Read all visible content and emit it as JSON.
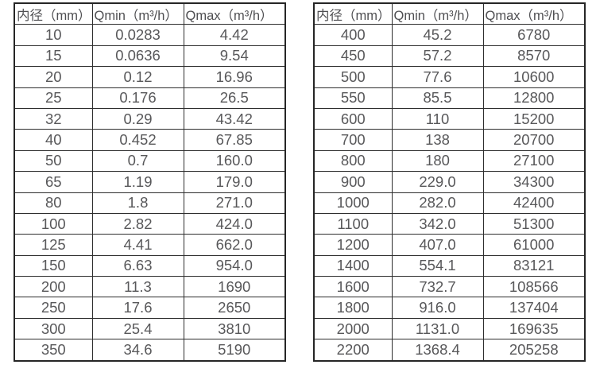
{
  "colors": {
    "border": "#262626",
    "inner_border": "#2e2e2e",
    "text": "#58585a",
    "background": "#ffffff"
  },
  "left_table": {
    "headers": [
      "内径（mm）",
      "Qmin（m³/h）",
      "Qmax（m³/h）"
    ],
    "rows": [
      [
        "10",
        "0.0283",
        "4.42"
      ],
      [
        "15",
        "0.0636",
        "9.54"
      ],
      [
        "20",
        "0.12",
        "16.96"
      ],
      [
        "25",
        "0.176",
        "26.5"
      ],
      [
        "32",
        "0.29",
        "43.42"
      ],
      [
        "40",
        "0.452",
        "67.85"
      ],
      [
        "50",
        "0.7",
        "160.0"
      ],
      [
        "65",
        "1.19",
        "179.0"
      ],
      [
        "80",
        "1.8",
        "271.0"
      ],
      [
        "100",
        "2.82",
        "424.0"
      ],
      [
        "125",
        "4.41",
        "662.0"
      ],
      [
        "150",
        "6.63",
        "954.0"
      ],
      [
        "200",
        "11.3",
        "1690"
      ],
      [
        "250",
        "17.6",
        "2650"
      ],
      [
        "300",
        "25.4",
        "3810"
      ],
      [
        "350",
        "34.6",
        "5190"
      ]
    ]
  },
  "right_table": {
    "headers": [
      "内径（mm）",
      "Qmin（m³/h）",
      "Qmax（m³/h）"
    ],
    "rows": [
      [
        "400",
        "45.2",
        "6780"
      ],
      [
        "450",
        "57.2",
        "8570"
      ],
      [
        "500",
        "77.6",
        "10600"
      ],
      [
        "550",
        "85.5",
        "12800"
      ],
      [
        "600",
        "110",
        "15200"
      ],
      [
        "700",
        "138",
        "20700"
      ],
      [
        "800",
        "180",
        "27100"
      ],
      [
        "900",
        "229.0",
        "34300"
      ],
      [
        "1000",
        "282.0",
        "42400"
      ],
      [
        "1100",
        "342.0",
        "51300"
      ],
      [
        "1200",
        "407.0",
        "61000"
      ],
      [
        "1400",
        "554.1",
        "83121"
      ],
      [
        "1600",
        "732.7",
        "108566"
      ],
      [
        "1800",
        "916.0",
        "137404"
      ],
      [
        "2000",
        "1131.0",
        "169635"
      ],
      [
        "2200",
        "1368.4",
        "205258"
      ]
    ]
  }
}
